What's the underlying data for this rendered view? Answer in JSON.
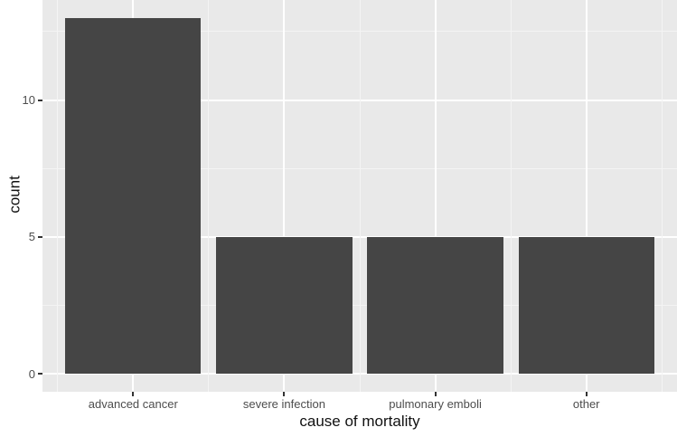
{
  "chart_data": {
    "type": "bar",
    "title": "",
    "categories": [
      "advanced cancer",
      "severe infection",
      "pulmonary emboli",
      "other"
    ],
    "values": [
      13,
      5,
      5,
      5
    ],
    "xlabel": "cause of mortality",
    "ylabel": "count",
    "y_major_ticks": [
      0,
      5,
      10
    ],
    "y_minor_ticks": [
      2.5,
      7.5,
      12.5
    ],
    "ylim": [
      -0.65,
      13.65
    ],
    "bar_rel_width": 0.9,
    "grid": true,
    "legend": false,
    "theme": "ggplot2-grey"
  },
  "colors": {
    "bar_fill": "#454545",
    "panel_background": "#e9e9e9",
    "grid_major": "#ffffff",
    "grid_minor": "#f4f4f4",
    "tick_text": "#4d4d4d",
    "axis_title_text": "#111111",
    "figure_background": "#ffffff"
  }
}
